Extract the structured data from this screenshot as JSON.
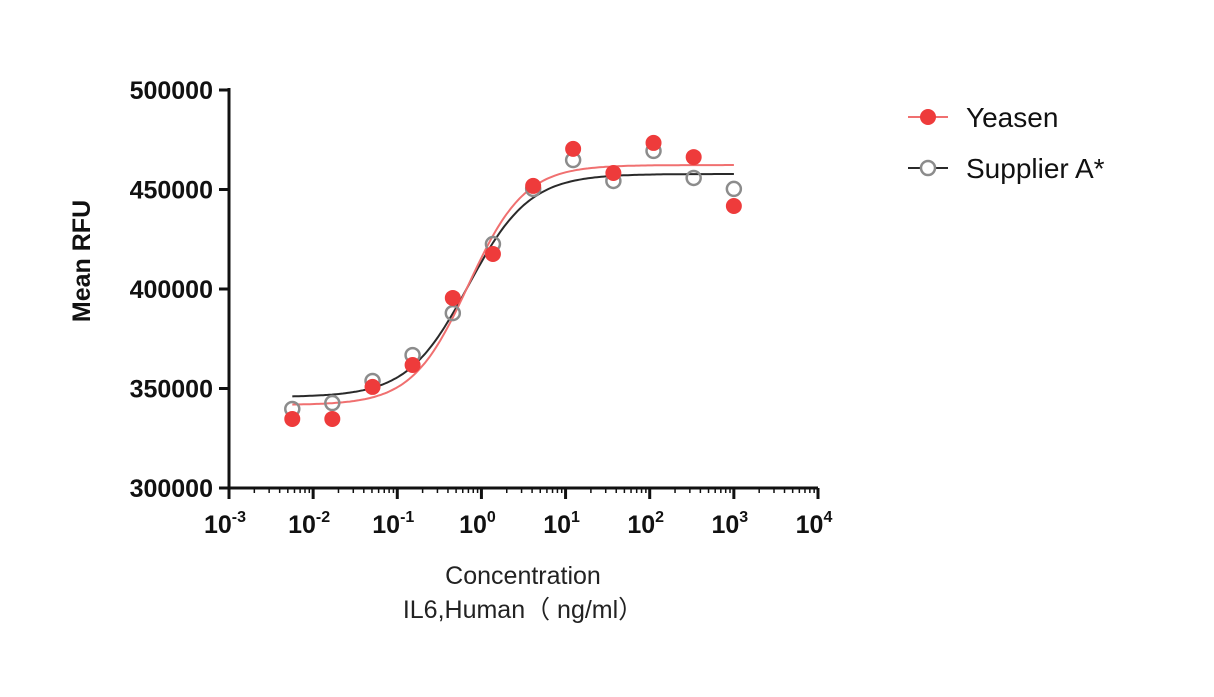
{
  "chart_data": {
    "type": "scatter",
    "xlabel": "Concentration",
    "xlabel2": "IL6,Human（ ng/ml）",
    "ylabel": "Mean RFU",
    "xscale": "log",
    "xlim": [
      0.001,
      10000
    ],
    "ylim": [
      300000,
      500000
    ],
    "xticks": [
      {
        "base": "10",
        "exp": "-3"
      },
      {
        "base": "10",
        "exp": "-2"
      },
      {
        "base": "10",
        "exp": "-1"
      },
      {
        "base": "10",
        "exp": "0"
      },
      {
        "base": "10",
        "exp": "1"
      },
      {
        "base": "10",
        "exp": "2"
      },
      {
        "base": "10",
        "exp": "3"
      },
      {
        "base": "10",
        "exp": "4"
      }
    ],
    "yticks": [
      "300000",
      "350000",
      "400000",
      "450000",
      "500000"
    ],
    "grid": false,
    "legend_position": "right",
    "x": [
      0.00565,
      0.0169,
      0.0508,
      0.152,
      0.457,
      1.37,
      4.12,
      12.3,
      37.0,
      111,
      333,
      1000
    ],
    "series": [
      {
        "name": "Yeasen",
        "color": "#ee3b3b",
        "line_color": "#f07070",
        "marker": "filled-circle",
        "values": [
          334700,
          334700,
          350800,
          361800,
          395500,
          417600,
          451800,
          470400,
          458300,
          473400,
          466300,
          441700
        ],
        "fit": {
          "bottom": 341700,
          "top": 462300,
          "ec50": 0.7,
          "hill": 1.3
        }
      },
      {
        "name": "Supplier A*",
        "color": "#8c8c8c",
        "line_color": "#2a2a2a",
        "marker": "open-circle",
        "values": [
          339700,
          342700,
          353800,
          366800,
          387900,
          422600,
          450300,
          464800,
          454300,
          469400,
          455800,
          450300
        ],
        "fit": {
          "bottom": 345700,
          "top": 457800,
          "ec50": 0.7,
          "hill": 1.2
        }
      }
    ]
  }
}
